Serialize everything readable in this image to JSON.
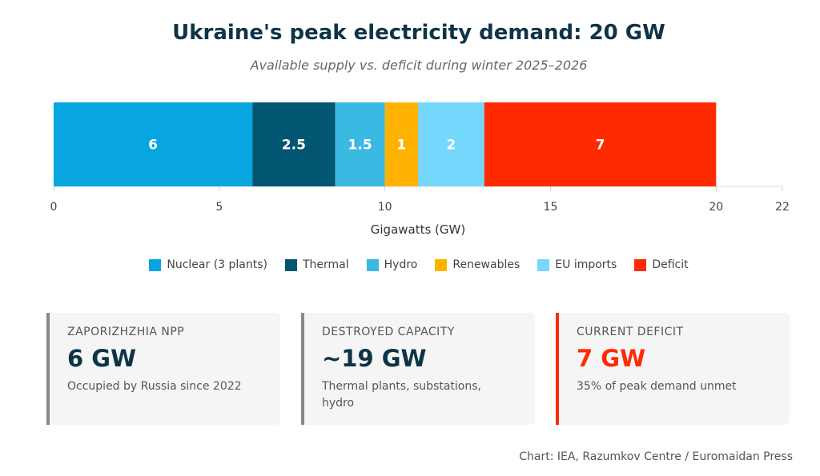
{
  "title": "Ukraine's peak electricity demand: 20 GW",
  "subtitle": "Available supply vs. deficit during winter 2025–2026",
  "chart_data": {
    "type": "bar",
    "orientation": "horizontal",
    "stacked": true,
    "xlabel": "Gigawatts (GW)",
    "xlim": [
      0,
      22
    ],
    "ticks": [
      0,
      5,
      10,
      15,
      20,
      22
    ],
    "legend_position": "bottom",
    "series": [
      {
        "name": "Nuclear (3 plants)",
        "value": 6,
        "label": "6",
        "color": "#08a6e1"
      },
      {
        "name": "Thermal",
        "value": 2.5,
        "label": "2.5",
        "color": "#035672"
      },
      {
        "name": "Hydro",
        "value": 1.5,
        "label": "1.5",
        "color": "#3ab9e3"
      },
      {
        "name": "Renewables",
        "value": 1,
        "label": "1",
        "color": "#ffb300"
      },
      {
        "name": "EU imports",
        "value": 2,
        "label": "2",
        "color": "#76d7fd"
      },
      {
        "name": "Deficit",
        "value": 7,
        "label": "7",
        "color": "#ff2a00"
      }
    ]
  },
  "cards": [
    {
      "title": "ZAPORIZHZHIA NPP",
      "value": "6 GW",
      "subtitle": "Occupied by Russia since 2022",
      "accent": "#888888",
      "value_color": "#0d3447"
    },
    {
      "title": "DESTROYED CAPACITY",
      "value": "~19 GW",
      "subtitle": "Thermal plants, substations, hydro",
      "accent": "#888888",
      "value_color": "#0d3447"
    },
    {
      "title": "CURRENT DEFICIT",
      "value": "7 GW",
      "subtitle": "35% of peak demand unmet",
      "accent": "#ff2a00",
      "value_color": "#ff2a00"
    }
  ],
  "source": "Chart: IEA, Razumkov Centre / Euromaidan Press"
}
